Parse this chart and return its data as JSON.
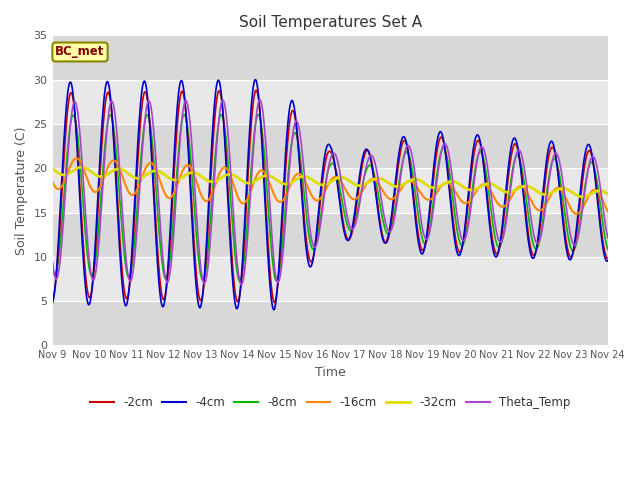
{
  "title": "Soil Temperatures Set A",
  "xlabel": "Time",
  "ylabel": "Soil Temperature (C)",
  "ylim": [
    0,
    35
  ],
  "xlim": [
    0,
    15
  ],
  "annotation": "BC_met",
  "tick_labels": [
    "Nov 9",
    "Nov 10",
    "Nov 11",
    "Nov 12",
    "Nov 13",
    "Nov 14",
    "Nov 15",
    "Nov 16",
    "Nov 17",
    "Nov 18",
    "Nov 19",
    "Nov 20",
    "Nov 21",
    "Nov 22",
    "Nov 23",
    "Nov 24"
  ],
  "series": {
    "neg2cm": {
      "color": "#cc0000",
      "lw": 1.2,
      "label": "-2cm"
    },
    "neg4cm": {
      "color": "#0000cc",
      "lw": 1.2,
      "label": "-4cm"
    },
    "neg8cm": {
      "color": "#00bb00",
      "lw": 1.2,
      "label": "-8cm"
    },
    "neg16cm": {
      "color": "#ff8800",
      "lw": 1.5,
      "label": "-16cm"
    },
    "neg32cm": {
      "color": "#dddd00",
      "lw": 2.0,
      "label": "-32cm"
    },
    "theta": {
      "color": "#aa44cc",
      "lw": 1.2,
      "label": "Theta_Temp"
    }
  },
  "band_colors": [
    "#d8d8d8",
    "#e8e8e8"
  ],
  "yticks": [
    0,
    5,
    10,
    15,
    20,
    25,
    30,
    35
  ]
}
